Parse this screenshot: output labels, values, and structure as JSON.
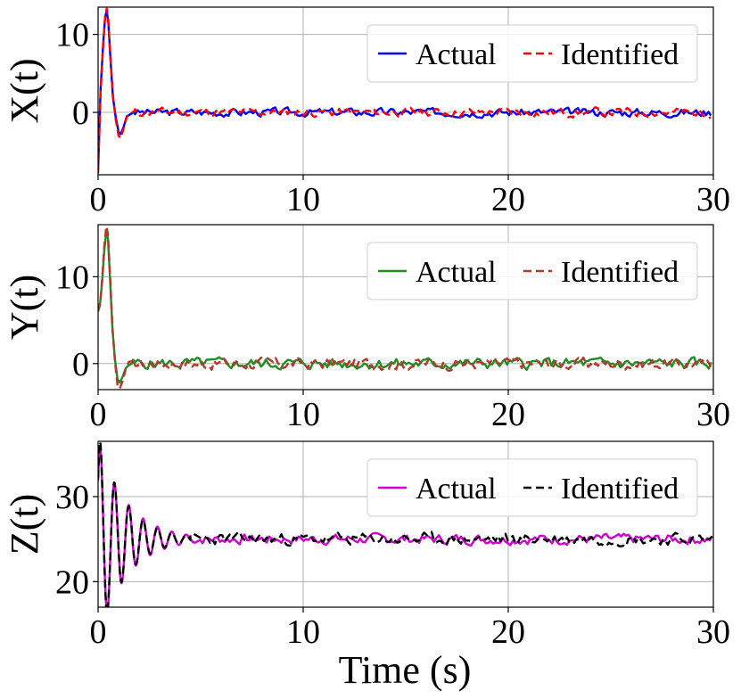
{
  "chart_data": [
    {
      "type": "line",
      "ylabel": "X(t)",
      "xlabel": "",
      "xlim": [
        0,
        30
      ],
      "ylim": [
        -8,
        13.5
      ],
      "xticks": [
        "0",
        "10",
        "20",
        "30"
      ],
      "yticks": [
        0,
        10
      ],
      "ytick_labels": [
        "0",
        "10"
      ],
      "grid": true,
      "legend_position": "top-right",
      "series": [
        {
          "name": "Actual",
          "color": "#0000ff",
          "style": "solid",
          "t": [
            0,
            0.12,
            0.25,
            0.35,
            0.42,
            0.5,
            0.6,
            0.72,
            0.85,
            1.0,
            1.1,
            1.25,
            1.4,
            1.6,
            1.8
          ],
          "v": [
            -7.5,
            3.0,
            9.0,
            12.3,
            13.0,
            11.5,
            7.0,
            2.0,
            -0.5,
            -2.5,
            -2.8,
            -1.8,
            -0.5,
            -0.2,
            0.1
          ],
          "noise": {
            "start": 1.8,
            "end": 30,
            "amp": 0.45,
            "seed": 3
          }
        },
        {
          "name": "Identified",
          "color": "#ff0000",
          "style": "dashed",
          "t": [
            0,
            0.12,
            0.25,
            0.35,
            0.42,
            0.5,
            0.6,
            0.72,
            0.85,
            1.0,
            1.1,
            1.25,
            1.4,
            1.6,
            1.8
          ],
          "v": [
            -7.8,
            2.5,
            8.8,
            12.5,
            13.3,
            11.8,
            7.2,
            2.2,
            -0.8,
            -3.0,
            -3.3,
            -2.0,
            -0.6,
            -0.1,
            0.2
          ],
          "noise": {
            "start": 1.8,
            "end": 30,
            "amp": 0.5,
            "seed": 11
          }
        }
      ]
    },
    {
      "type": "line",
      "ylabel": "Y(t)",
      "xlabel": "",
      "xlim": [
        0,
        30
      ],
      "ylim": [
        -3,
        16
      ],
      "xticks": [
        "0",
        "10",
        "20",
        "30"
      ],
      "yticks": [
        0,
        10
      ],
      "ytick_labels": [
        "0",
        "10"
      ],
      "grid": true,
      "legend_position": "top-right",
      "series": [
        {
          "name": "Actual",
          "color": "#228b22",
          "style": "solid",
          "t": [
            0,
            0.1,
            0.2,
            0.3,
            0.4,
            0.48,
            0.58,
            0.7,
            0.82,
            0.95,
            1.05,
            1.2,
            1.35,
            1.5,
            1.7
          ],
          "v": [
            6.5,
            7.0,
            9.5,
            13.0,
            15.2,
            14.5,
            10.0,
            4.0,
            0.5,
            -1.8,
            -2.2,
            -1.5,
            -0.5,
            -0.2,
            0.1
          ],
          "noise": {
            "start": 1.7,
            "end": 30,
            "amp": 0.55,
            "seed": 5
          }
        },
        {
          "name": "Identified",
          "color": "#b03a2e",
          "style": "dashed",
          "t": [
            0,
            0.1,
            0.2,
            0.3,
            0.4,
            0.48,
            0.58,
            0.7,
            0.82,
            0.95,
            1.05,
            1.2,
            1.35,
            1.5,
            1.7
          ],
          "v": [
            6.0,
            6.8,
            9.8,
            13.5,
            15.8,
            15.0,
            10.5,
            4.2,
            0.2,
            -2.5,
            -2.9,
            -2.0,
            -0.6,
            0.2,
            0.3
          ],
          "noise": {
            "start": 1.7,
            "end": 30,
            "amp": 0.6,
            "seed": 17
          }
        }
      ]
    },
    {
      "type": "line",
      "ylabel": "Z(t)",
      "xlabel": "Time (s)",
      "xlim": [
        0,
        30
      ],
      "ylim": [
        17,
        36.5
      ],
      "xticks": [
        "0",
        "10",
        "20",
        "30"
      ],
      "yticks": [
        20,
        30
      ],
      "ytick_labels": [
        "20",
        "30"
      ],
      "grid": true,
      "legend_position": "top-right",
      "series": [
        {
          "name": "Actual",
          "color": "#cc00cc",
          "style": "solid",
          "osc": {
            "base": 25,
            "amp0": 11,
            "decay": 0.72,
            "period": 0.7,
            "start": 0.1
          },
          "noise": {
            "start": 4.5,
            "end": 30,
            "amp": 0.5,
            "seed": 7
          }
        },
        {
          "name": "Identified",
          "color": "#000000",
          "style": "dashed",
          "osc": {
            "base": 25,
            "amp0": 11.5,
            "decay": 0.78,
            "period": 0.7,
            "start": 0.1
          },
          "noise": {
            "start": 4.5,
            "end": 30,
            "amp": 0.6,
            "seed": 23
          }
        }
      ]
    }
  ]
}
